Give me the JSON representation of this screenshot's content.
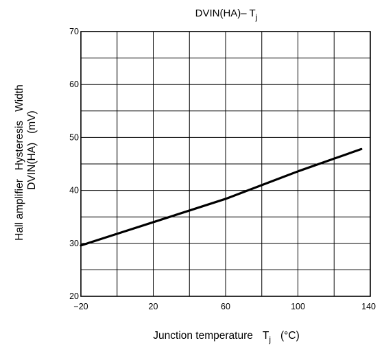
{
  "chart_data": {
    "type": "line",
    "title": "DVIN(HA)– T",
    "title_subscript": "j",
    "xlabel": "Junction temperature",
    "xlabel_symbol": "T",
    "xlabel_subscript": "j",
    "xlabel_unit": "(°C)",
    "ylabel_line1": "Hall amplifier   Hysteresis   Width",
    "ylabel_line2": "DVIN(HA)   (mV)",
    "xlim": [
      -20,
      140
    ],
    "ylim": [
      20,
      70
    ],
    "xticks": [
      -20,
      20,
      60,
      100,
      140
    ],
    "xtick_labels": [
      "−20",
      "20",
      "60",
      "100",
      "140"
    ],
    "x_grid_step": 20,
    "yticks": [
      20,
      30,
      40,
      50,
      60,
      70
    ],
    "ytick_labels": [
      "20",
      "30",
      "40",
      "50",
      "60",
      "70"
    ],
    "y_grid_step": 5,
    "grid": true,
    "series": [
      {
        "x": [
          -20,
          0,
          20,
          40,
          60,
          80,
          100,
          120,
          135
        ],
        "y": [
          29.6,
          31.8,
          34.0,
          36.2,
          38.4,
          41.0,
          43.6,
          46.0,
          47.8
        ]
      }
    ]
  }
}
